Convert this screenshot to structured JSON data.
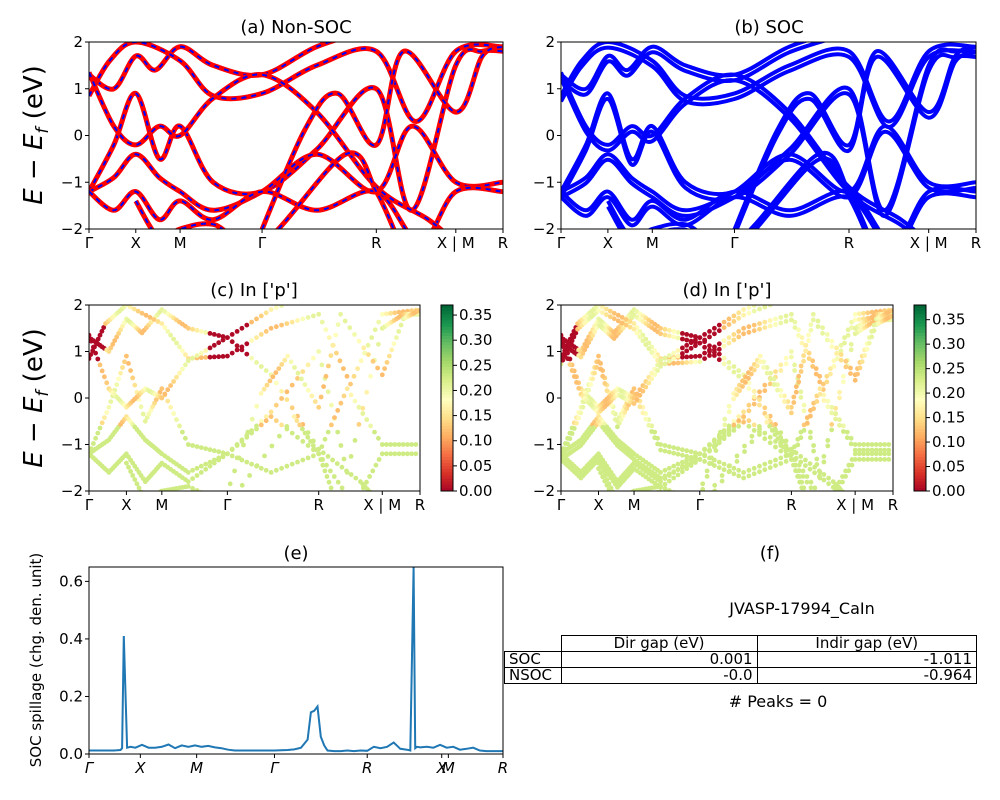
{
  "chart_data": [
    {
      "type": "line",
      "panel": "a",
      "title": "(a) Non-SOC",
      "ylabel": "E − E_f (eV)",
      "ylim": [
        -2,
        2
      ],
      "yticks": [
        "2",
        "1",
        "0",
        "−1",
        "−2"
      ],
      "xticks": [
        "Γ",
        "X",
        "M",
        "Γ",
        "R",
        "X | M",
        "R"
      ],
      "series": [
        {
          "color": "#ff0000"
        },
        {
          "color": "#0000ff"
        }
      ]
    },
    {
      "type": "line",
      "panel": "b",
      "title": "(b) SOC",
      "ylim": [
        -2,
        2
      ],
      "yticks": [
        "2",
        "1",
        "0",
        "−1",
        "−2"
      ],
      "xticks": [
        "Γ",
        "X",
        "M",
        "Γ",
        "R",
        "X | M",
        "R"
      ],
      "series": [
        {
          "color": "#0000ff"
        }
      ]
    },
    {
      "type": "scatter",
      "panel": "c",
      "title": "(c)  In ['p']",
      "ylabel": "E − E_f (eV)",
      "ylim": [
        -2,
        2
      ],
      "yticks": [
        "2",
        "1",
        "0",
        "−1",
        "−2"
      ],
      "xticks": [
        "Γ",
        "X",
        "M",
        "Γ",
        "R",
        "X | M",
        "R"
      ],
      "colorbar": {
        "ticks": [
          "0.35",
          "0.30",
          "0.25",
          "0.20",
          "0.15",
          "0.10",
          "0.05",
          "0.00"
        ],
        "range": [
          0,
          0.37
        ],
        "colormap": "RdYlGn"
      }
    },
    {
      "type": "scatter",
      "panel": "d",
      "title": "(d) In ['p']",
      "ylim": [
        -2,
        2
      ],
      "yticks": [
        "2",
        "1",
        "0",
        "−1",
        "−2"
      ],
      "xticks": [
        "Γ",
        "X",
        "M",
        "Γ",
        "R",
        "X | M",
        "R"
      ],
      "colorbar": {
        "ticks": [
          "0.35",
          "0.30",
          "0.25",
          "0.20",
          "0.15",
          "0.10",
          "0.05",
          "0.00"
        ],
        "range": [
          0,
          0.38
        ],
        "colormap": "RdYlGn"
      }
    },
    {
      "type": "line",
      "panel": "e",
      "title": "(e)",
      "ylabel": "SOC spillage (chg. den. unit)",
      "ylim": [
        0,
        0.65
      ],
      "yticks": [
        "0.6",
        "0.4",
        "0.2",
        "0.0"
      ],
      "xticks": [
        "Γ",
        "X",
        "M",
        "Γ",
        "R",
        "X",
        "M",
        "R"
      ],
      "x": [
        0,
        0.2,
        0.4,
        0.6,
        0.75,
        0.85,
        0.95,
        1.0,
        1.05,
        1.15,
        1.25,
        1.4,
        1.6,
        1.8,
        2.0,
        2.2,
        2.4,
        2.6,
        2.8,
        3.0,
        3.2,
        3.4,
        3.6,
        3.8,
        4.0,
        4.2,
        4.4,
        4.6,
        4.8,
        5.0,
        5.2,
        5.4,
        5.6,
        5.8,
        6.0,
        6.2,
        6.4,
        6.6,
        6.7,
        6.8,
        6.9,
        7.0,
        7.1,
        7.2,
        7.4,
        7.6,
        7.8,
        8.0,
        8.2,
        8.4,
        8.6,
        8.8,
        9.0,
        9.2,
        9.4,
        9.6,
        9.7,
        9.8,
        9.85,
        9.9,
        10.0,
        10.2,
        10.4,
        10.6,
        10.8,
        11.0,
        11.2,
        11.4,
        11.6,
        11.8,
        12.0,
        12.2,
        12.4,
        12.5
      ],
      "values": [
        0.012,
        0.012,
        0.012,
        0.012,
        0.012,
        0.013,
        0.014,
        0.02,
        0.41,
        0.022,
        0.025,
        0.022,
        0.032,
        0.022,
        0.022,
        0.025,
        0.033,
        0.02,
        0.03,
        0.025,
        0.03,
        0.025,
        0.028,
        0.023,
        0.02,
        0.015,
        0.012,
        0.012,
        0.012,
        0.012,
        0.012,
        0.012,
        0.012,
        0.013,
        0.014,
        0.016,
        0.022,
        0.05,
        0.145,
        0.15,
        0.165,
        0.06,
        0.03,
        0.012,
        0.01,
        0.01,
        0.012,
        0.01,
        0.012,
        0.011,
        0.025,
        0.02,
        0.025,
        0.04,
        0.018,
        0.015,
        0.012,
        0.65,
        0.02,
        0.025,
        0.023,
        0.025,
        0.022,
        0.032,
        0.022,
        0.025,
        0.015,
        0.018,
        0.022,
        0.012,
        0.01,
        0.01,
        0.01,
        0.01
      ],
      "color": "#1f77b4"
    }
  ],
  "panel_f": {
    "title": "(f)",
    "material": "JVASP-17994_CaIn",
    "table": {
      "headers": [
        "Dir gap (eV)",
        "Indir gap (eV)"
      ],
      "rows": [
        {
          "label": "SOC",
          "dir": "0.001",
          "indir": "-1.011"
        },
        {
          "label": "NSOC",
          "dir": "-0.0",
          "indir": "-0.964"
        }
      ]
    },
    "peaks": "# Peaks = 0"
  }
}
